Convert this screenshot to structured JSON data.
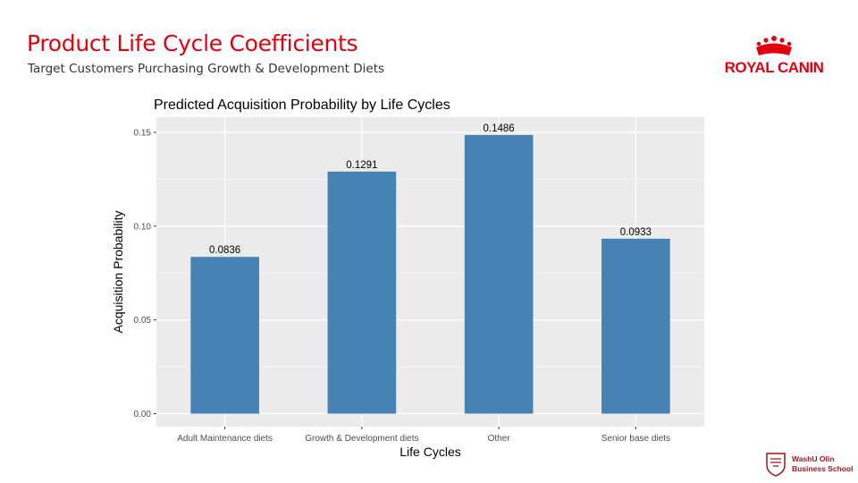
{
  "slide": {
    "title": "Product Life Cycle Coefficients",
    "subtitle": "Target Customers Purchasing Growth & Development Diets"
  },
  "brand": {
    "logo_text": "ROYAL CANIN",
    "logo_color": "#e3000f",
    "footer_line1": "WashU Olin",
    "footer_line2": "Business School",
    "footer_color": "#a51417"
  },
  "chart_data": {
    "type": "bar",
    "title": "Predicted Acquisition Probability by Life Cycles",
    "xlabel": "Life Cycles",
    "ylabel": "Acquisition Probability",
    "categories": [
      "Adult Maintenance diets",
      "Growth & Development diets",
      "Other",
      "Senior base diets"
    ],
    "values": [
      0.0836,
      0.1291,
      0.1486,
      0.0933
    ],
    "value_labels": [
      "0.0836",
      "0.1291",
      "0.1486",
      "0.0933"
    ],
    "ylim": [
      0,
      0.155
    ],
    "yticks": [
      0,
      0.05,
      0.1,
      0.15
    ],
    "ytick_labels": [
      "0.00",
      "0.05",
      "0.10",
      "0.15"
    ],
    "bar_color": "#4682b4",
    "panel_color": "#ebebeb",
    "grid": true,
    "legend": "none"
  }
}
